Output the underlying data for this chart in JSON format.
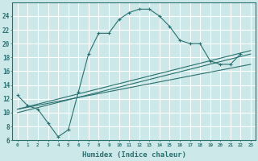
{
  "xlabel": "Humidex (Indice chaleur)",
  "bg_color": "#cce8e8",
  "grid_color": "#ffffff",
  "line_color": "#2a7070",
  "xlim": [
    -0.5,
    23.5
  ],
  "ylim": [
    6,
    26
  ],
  "yticks": [
    6,
    8,
    10,
    12,
    14,
    16,
    18,
    20,
    22,
    24
  ],
  "xticks": [
    0,
    1,
    2,
    3,
    4,
    5,
    6,
    7,
    8,
    9,
    10,
    11,
    12,
    13,
    14,
    15,
    16,
    17,
    18,
    19,
    20,
    21,
    22,
    23
  ],
  "curve1_x": [
    0,
    1,
    2,
    3,
    4,
    5,
    6,
    7,
    8,
    9,
    10,
    11,
    12,
    13,
    14,
    15,
    16,
    17,
    18,
    19,
    20,
    21,
    22
  ],
  "curve1_y": [
    12.5,
    11.0,
    10.5,
    8.5,
    6.5,
    7.5,
    13.0,
    18.5,
    21.5,
    21.5,
    23.5,
    24.5,
    25.0,
    25.0,
    24.0,
    22.5,
    20.5,
    20.0,
    20.0,
    17.5,
    17.0,
    17.0,
    18.5
  ],
  "curve2_x": [
    0,
    23
  ],
  "curve2_y": [
    10.5,
    19.0
  ],
  "curve3_x": [
    0,
    23
  ],
  "curve3_y": [
    10.5,
    17.0
  ],
  "curve4_x": [
    0,
    23
  ],
  "curve4_y": [
    10.0,
    18.5
  ]
}
